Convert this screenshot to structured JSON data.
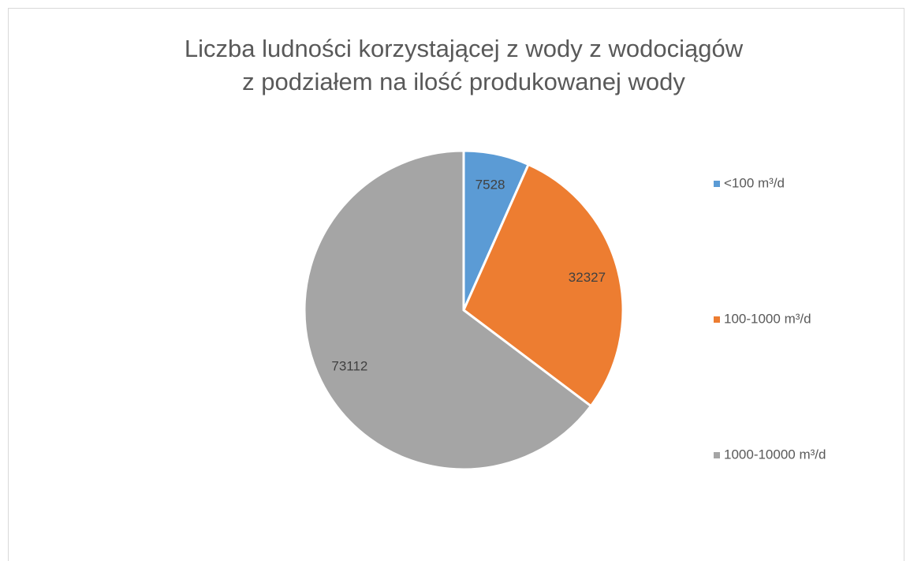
{
  "chart_data": {
    "type": "pie",
    "title": [
      "Liczba ludności korzystającej z wody z wodociągów",
      "z podziałem na ilość produkowanej wody"
    ],
    "categories": [
      "<100 m³/d",
      "100-1000 m³/d",
      "1000-10000 m³/d"
    ],
    "values": [
      7528,
      32327,
      73112
    ],
    "colors": [
      "#5b9bd5",
      "#ed7d31",
      "#a5a5a5"
    ],
    "legend": "right"
  }
}
